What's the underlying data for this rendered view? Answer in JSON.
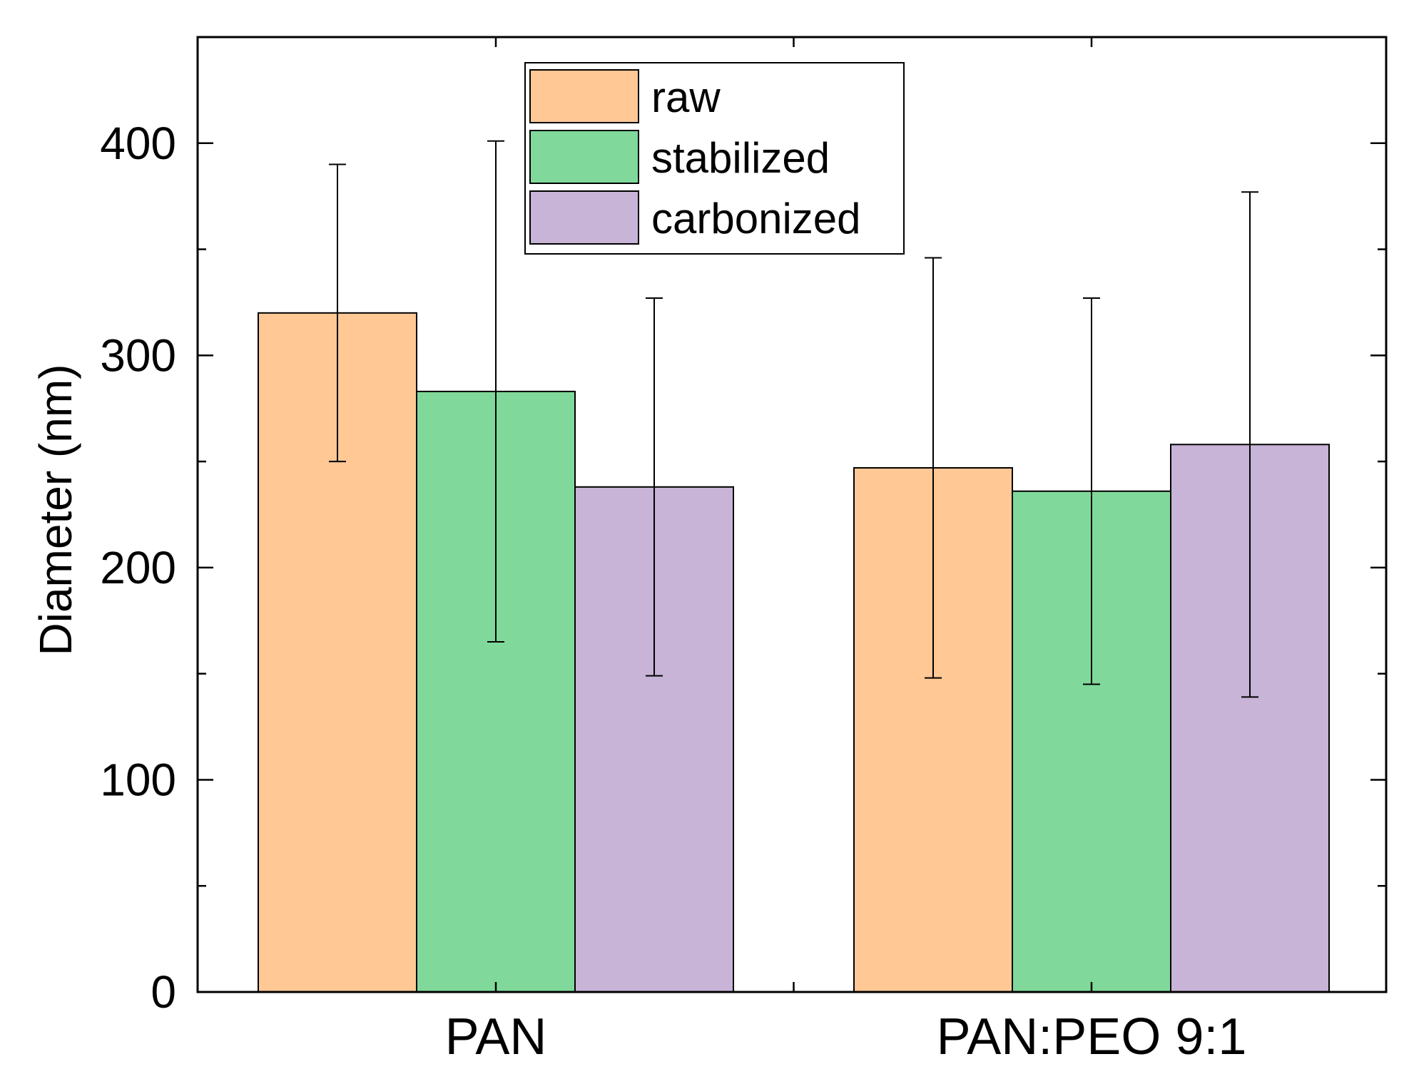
{
  "chart_data": {
    "type": "bar",
    "title": "",
    "xlabel": "",
    "ylabel": "Diameter (nm)",
    "ylim": [
      0,
      450
    ],
    "yticks": [
      0,
      100,
      200,
      300,
      400
    ],
    "ytick_labels": [
      "0",
      "100",
      "200",
      "300",
      "400"
    ],
    "categories": [
      "PAN",
      "PAN:PEO 9:1"
    ],
    "series": [
      {
        "name": "raw",
        "color": "#FFC895",
        "values": [
          320,
          247
        ],
        "errors": [
          70,
          99
        ]
      },
      {
        "name": "stabilized",
        "color": "#80D99A",
        "values": [
          283,
          236
        ],
        "errors": [
          118,
          91
        ]
      },
      {
        "name": "carbonized",
        "color": "#C8B4D7",
        "values": [
          238,
          258
        ],
        "errors": [
          89,
          119
        ]
      }
    ],
    "legend_position": "top-center",
    "grid": false
  }
}
